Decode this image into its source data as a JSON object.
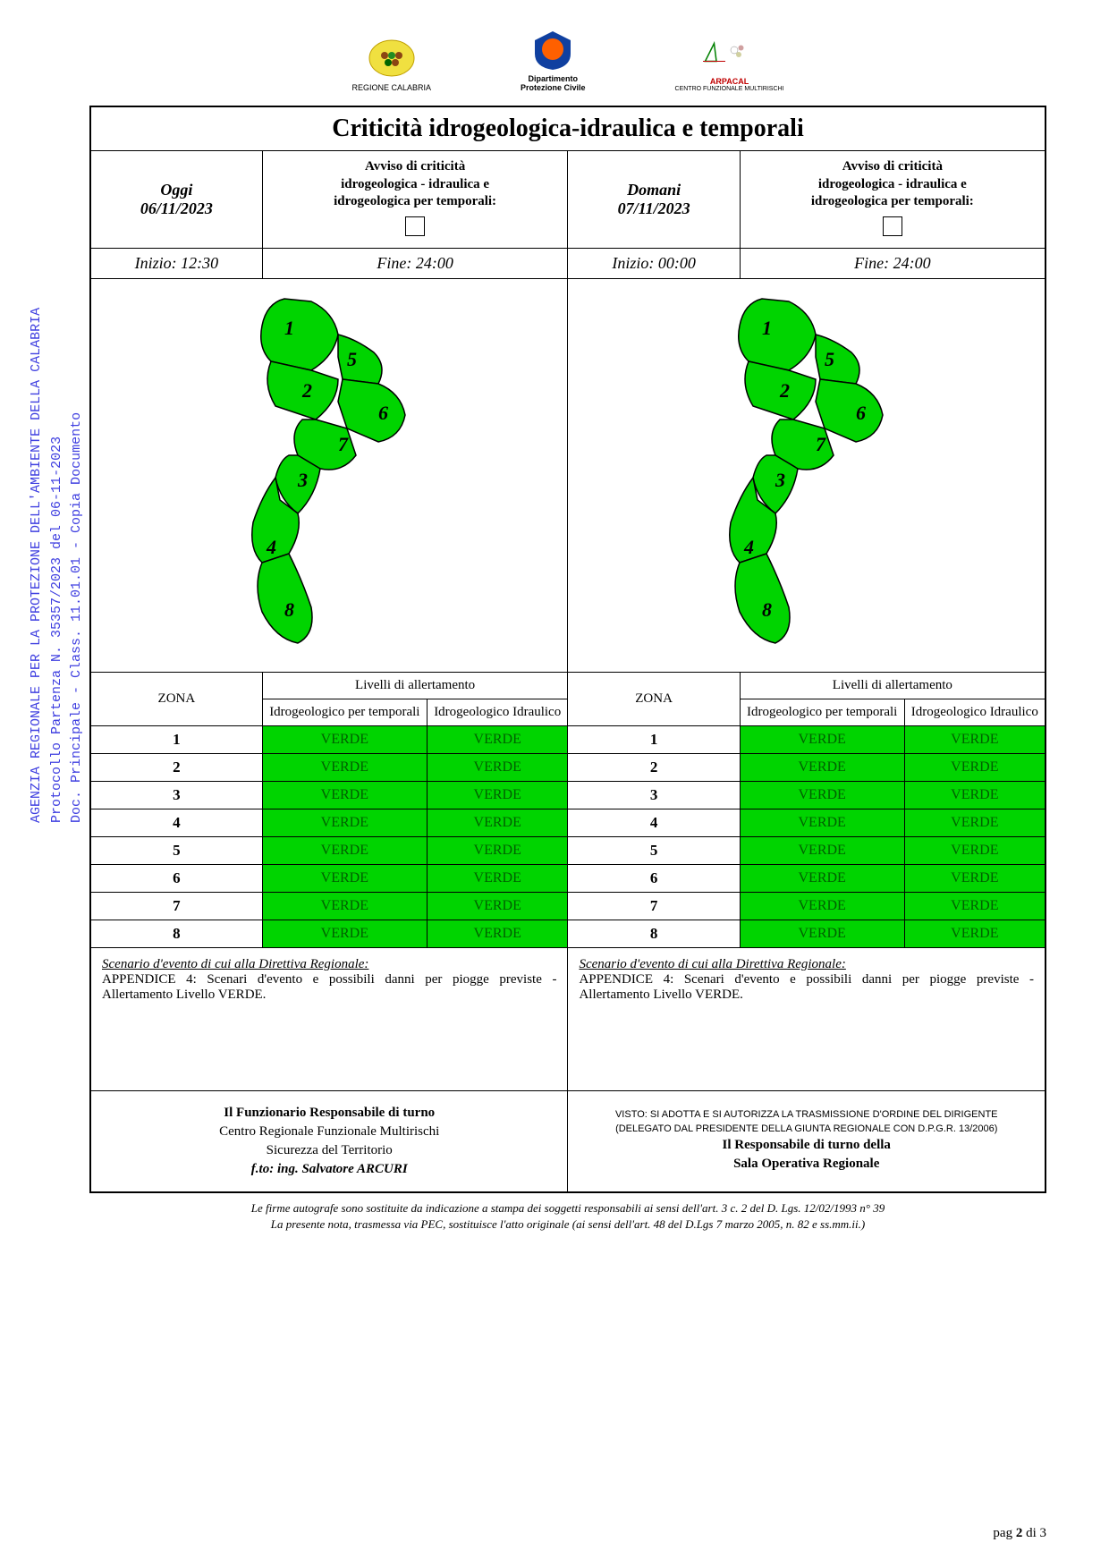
{
  "title": "Criticità idrogeologica-idraulica e temporali",
  "logos": {
    "l1": "REGIONE CALABRIA",
    "l2a": "Dipartimento",
    "l2b": "Protezione Civile",
    "l3a": "ARPACAL",
    "l3b": "CENTRO FUNZIONALE MULTIRISCHI"
  },
  "header": {
    "today_lbl": "Oggi",
    "today_date": "06/11/2023",
    "tomorrow_lbl": "Domani",
    "tomorrow_date": "07/11/2023",
    "avviso_l1": "Avviso di criticità",
    "avviso_l2": "idrogeologica - idraulica e",
    "avviso_l3": "idrogeologica per temporali:"
  },
  "times": {
    "t_inizio": "Inizio: 12:30",
    "t_fine": "Fine: 24:00",
    "d_inizio": "Inizio: 00:00",
    "d_fine": "Fine: 24:00"
  },
  "map": {
    "fill": "#00d400",
    "stroke": "#000000",
    "labels": [
      "1",
      "2",
      "3",
      "4",
      "5",
      "6",
      "7",
      "8"
    ]
  },
  "table": {
    "zona": "ZONA",
    "livelli": "Livelli di allertamento",
    "col1": "Idrogeologico per temporali",
    "col2": "Idrogeologico Idraulico",
    "verde": "VERDE",
    "verde_bg": "#00d400",
    "verde_fg": "#006000"
  },
  "zones": [
    "1",
    "2",
    "3",
    "4",
    "5",
    "6",
    "7",
    "8"
  ],
  "scenario": {
    "heading": "Scenario d'evento di cui alla Direttiva Regionale:",
    "body": "APPENDICE 4: Scenari d'evento e possibili danni per piogge previste - Allertamento Livello VERDE."
  },
  "sig_left": {
    "l1": "Il Funzionario Responsabile di turno",
    "l2": "Centro Regionale Funzionale Multirischi",
    "l3": "Sicurezza del Territorio",
    "l4": "f.to: ing. Salvatore ARCURI"
  },
  "sig_right": {
    "s1": "VISTO: SI ADOTTA E SI AUTORIZZA LA TRASMISSIONE D'ORDINE DEL DIRIGENTE",
    "s2": "(DELEGATO DAL PRESIDENTE DELLA GIUNTA REGIONALE CON D.P.G.R. 13/2006)",
    "l1": "Il Responsabile di turno della",
    "l2": "Sala Operativa Regionale"
  },
  "footnote": {
    "l1": "Le firme autografe sono sostituite da indicazione a stampa dei soggetti responsabili ai sensi dell'art. 3 c. 2 del D. Lgs. 12/02/1993 n° 39",
    "l2": "La presente nota, trasmessa via PEC, sostituisce l'atto originale (ai sensi dell'art. 48 del D.Lgs 7 marzo 2005, n. 82 e ss.mm.ii.)"
  },
  "pagenum": {
    "pag": "pag ",
    "n": "2",
    "di": " di ",
    "tot": "3"
  },
  "sidebar": {
    "l1": "AGENZIA REGIONALE PER LA PROTEZIONE DELL'AMBIENTE DELLA CALABRIA",
    "l2": "Protocollo Partenza N. 35357/2023 del 06-11-2023",
    "l3": "Doc. Principale - Class. 11.01.01 - Copia Documento"
  }
}
